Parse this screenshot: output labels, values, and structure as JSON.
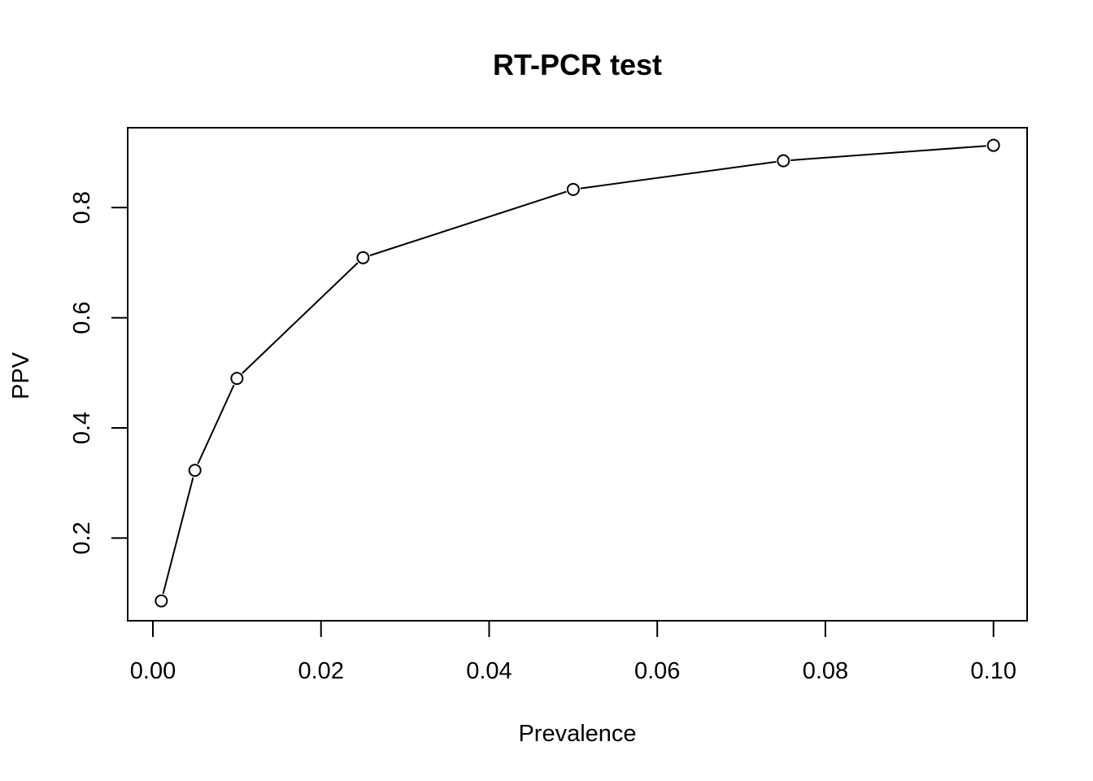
{
  "chart_data": {
    "type": "line",
    "title": "RT-PCR test",
    "xlabel": "Prevalence",
    "ylabel": "PPV",
    "x": [
      0.001,
      0.005,
      0.01,
      0.025,
      0.05,
      0.075,
      0.1
    ],
    "series": [
      {
        "values": [
          0.086,
          0.323,
          0.49,
          0.709,
          0.833,
          0.885,
          0.913
        ],
        "marker": "open-circle",
        "color": "#000000"
      }
    ],
    "xlim": [
      -0.003,
      0.104
    ],
    "ylim": [
      0.05,
      0.945
    ],
    "xticks": [
      0.0,
      0.02,
      0.04,
      0.06,
      0.08,
      0.1
    ],
    "xtick_labels": [
      "0.00",
      "0.02",
      "0.04",
      "0.06",
      "0.08",
      "0.10"
    ],
    "yticks": [
      0.2,
      0.4,
      0.6,
      0.8
    ],
    "ytick_labels": [
      "0.2",
      "0.4",
      "0.6",
      "0.8"
    ],
    "grid": false,
    "legend": "none"
  }
}
